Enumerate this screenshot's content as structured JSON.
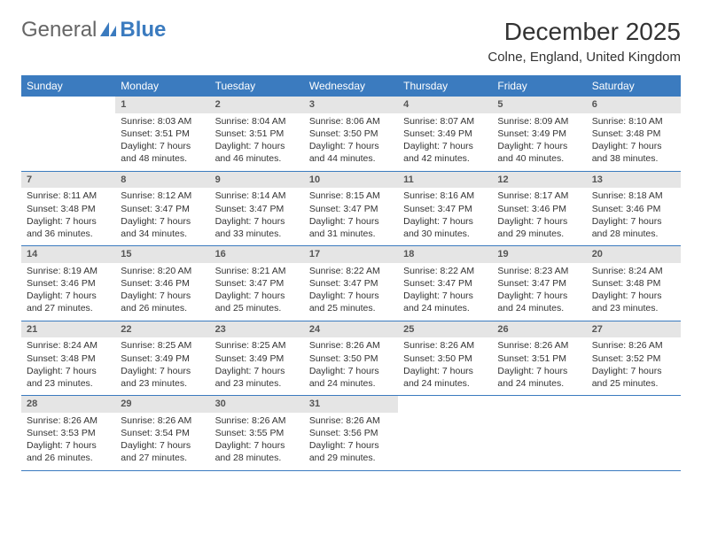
{
  "logo": {
    "text1": "General",
    "text2": "Blue"
  },
  "title": "December 2025",
  "location": "Colne, England, United Kingdom",
  "colors": {
    "header_bg": "#3b7bbf",
    "header_text": "#ffffff",
    "daynum_bg": "#e5e5e5",
    "daynum_text": "#555555",
    "body_text": "#333333",
    "row_border": "#3b7bbf",
    "page_bg": "#ffffff"
  },
  "fonts": {
    "title_pt": 28,
    "location_pt": 15,
    "header_pt": 12,
    "cell_pt": 10.5,
    "daynum_pt": 11
  },
  "day_headers": [
    "Sunday",
    "Monday",
    "Tuesday",
    "Wednesday",
    "Thursday",
    "Friday",
    "Saturday"
  ],
  "weeks": [
    [
      {
        "n": "",
        "sr": "",
        "ss": "",
        "dl": ""
      },
      {
        "n": "1",
        "sr": "Sunrise: 8:03 AM",
        "ss": "Sunset: 3:51 PM",
        "dl": "Daylight: 7 hours and 48 minutes."
      },
      {
        "n": "2",
        "sr": "Sunrise: 8:04 AM",
        "ss": "Sunset: 3:51 PM",
        "dl": "Daylight: 7 hours and 46 minutes."
      },
      {
        "n": "3",
        "sr": "Sunrise: 8:06 AM",
        "ss": "Sunset: 3:50 PM",
        "dl": "Daylight: 7 hours and 44 minutes."
      },
      {
        "n": "4",
        "sr": "Sunrise: 8:07 AM",
        "ss": "Sunset: 3:49 PM",
        "dl": "Daylight: 7 hours and 42 minutes."
      },
      {
        "n": "5",
        "sr": "Sunrise: 8:09 AM",
        "ss": "Sunset: 3:49 PM",
        "dl": "Daylight: 7 hours and 40 minutes."
      },
      {
        "n": "6",
        "sr": "Sunrise: 8:10 AM",
        "ss": "Sunset: 3:48 PM",
        "dl": "Daylight: 7 hours and 38 minutes."
      }
    ],
    [
      {
        "n": "7",
        "sr": "Sunrise: 8:11 AM",
        "ss": "Sunset: 3:48 PM",
        "dl": "Daylight: 7 hours and 36 minutes."
      },
      {
        "n": "8",
        "sr": "Sunrise: 8:12 AM",
        "ss": "Sunset: 3:47 PM",
        "dl": "Daylight: 7 hours and 34 minutes."
      },
      {
        "n": "9",
        "sr": "Sunrise: 8:14 AM",
        "ss": "Sunset: 3:47 PM",
        "dl": "Daylight: 7 hours and 33 minutes."
      },
      {
        "n": "10",
        "sr": "Sunrise: 8:15 AM",
        "ss": "Sunset: 3:47 PM",
        "dl": "Daylight: 7 hours and 31 minutes."
      },
      {
        "n": "11",
        "sr": "Sunrise: 8:16 AM",
        "ss": "Sunset: 3:47 PM",
        "dl": "Daylight: 7 hours and 30 minutes."
      },
      {
        "n": "12",
        "sr": "Sunrise: 8:17 AM",
        "ss": "Sunset: 3:46 PM",
        "dl": "Daylight: 7 hours and 29 minutes."
      },
      {
        "n": "13",
        "sr": "Sunrise: 8:18 AM",
        "ss": "Sunset: 3:46 PM",
        "dl": "Daylight: 7 hours and 28 minutes."
      }
    ],
    [
      {
        "n": "14",
        "sr": "Sunrise: 8:19 AM",
        "ss": "Sunset: 3:46 PM",
        "dl": "Daylight: 7 hours and 27 minutes."
      },
      {
        "n": "15",
        "sr": "Sunrise: 8:20 AM",
        "ss": "Sunset: 3:46 PM",
        "dl": "Daylight: 7 hours and 26 minutes."
      },
      {
        "n": "16",
        "sr": "Sunrise: 8:21 AM",
        "ss": "Sunset: 3:47 PM",
        "dl": "Daylight: 7 hours and 25 minutes."
      },
      {
        "n": "17",
        "sr": "Sunrise: 8:22 AM",
        "ss": "Sunset: 3:47 PM",
        "dl": "Daylight: 7 hours and 25 minutes."
      },
      {
        "n": "18",
        "sr": "Sunrise: 8:22 AM",
        "ss": "Sunset: 3:47 PM",
        "dl": "Daylight: 7 hours and 24 minutes."
      },
      {
        "n": "19",
        "sr": "Sunrise: 8:23 AM",
        "ss": "Sunset: 3:47 PM",
        "dl": "Daylight: 7 hours and 24 minutes."
      },
      {
        "n": "20",
        "sr": "Sunrise: 8:24 AM",
        "ss": "Sunset: 3:48 PM",
        "dl": "Daylight: 7 hours and 23 minutes."
      }
    ],
    [
      {
        "n": "21",
        "sr": "Sunrise: 8:24 AM",
        "ss": "Sunset: 3:48 PM",
        "dl": "Daylight: 7 hours and 23 minutes."
      },
      {
        "n": "22",
        "sr": "Sunrise: 8:25 AM",
        "ss": "Sunset: 3:49 PM",
        "dl": "Daylight: 7 hours and 23 minutes."
      },
      {
        "n": "23",
        "sr": "Sunrise: 8:25 AM",
        "ss": "Sunset: 3:49 PM",
        "dl": "Daylight: 7 hours and 23 minutes."
      },
      {
        "n": "24",
        "sr": "Sunrise: 8:26 AM",
        "ss": "Sunset: 3:50 PM",
        "dl": "Daylight: 7 hours and 24 minutes."
      },
      {
        "n": "25",
        "sr": "Sunrise: 8:26 AM",
        "ss": "Sunset: 3:50 PM",
        "dl": "Daylight: 7 hours and 24 minutes."
      },
      {
        "n": "26",
        "sr": "Sunrise: 8:26 AM",
        "ss": "Sunset: 3:51 PM",
        "dl": "Daylight: 7 hours and 24 minutes."
      },
      {
        "n": "27",
        "sr": "Sunrise: 8:26 AM",
        "ss": "Sunset: 3:52 PM",
        "dl": "Daylight: 7 hours and 25 minutes."
      }
    ],
    [
      {
        "n": "28",
        "sr": "Sunrise: 8:26 AM",
        "ss": "Sunset: 3:53 PM",
        "dl": "Daylight: 7 hours and 26 minutes."
      },
      {
        "n": "29",
        "sr": "Sunrise: 8:26 AM",
        "ss": "Sunset: 3:54 PM",
        "dl": "Daylight: 7 hours and 27 minutes."
      },
      {
        "n": "30",
        "sr": "Sunrise: 8:26 AM",
        "ss": "Sunset: 3:55 PM",
        "dl": "Daylight: 7 hours and 28 minutes."
      },
      {
        "n": "31",
        "sr": "Sunrise: 8:26 AM",
        "ss": "Sunset: 3:56 PM",
        "dl": "Daylight: 7 hours and 29 minutes."
      },
      {
        "n": "",
        "sr": "",
        "ss": "",
        "dl": ""
      },
      {
        "n": "",
        "sr": "",
        "ss": "",
        "dl": ""
      },
      {
        "n": "",
        "sr": "",
        "ss": "",
        "dl": ""
      }
    ]
  ]
}
